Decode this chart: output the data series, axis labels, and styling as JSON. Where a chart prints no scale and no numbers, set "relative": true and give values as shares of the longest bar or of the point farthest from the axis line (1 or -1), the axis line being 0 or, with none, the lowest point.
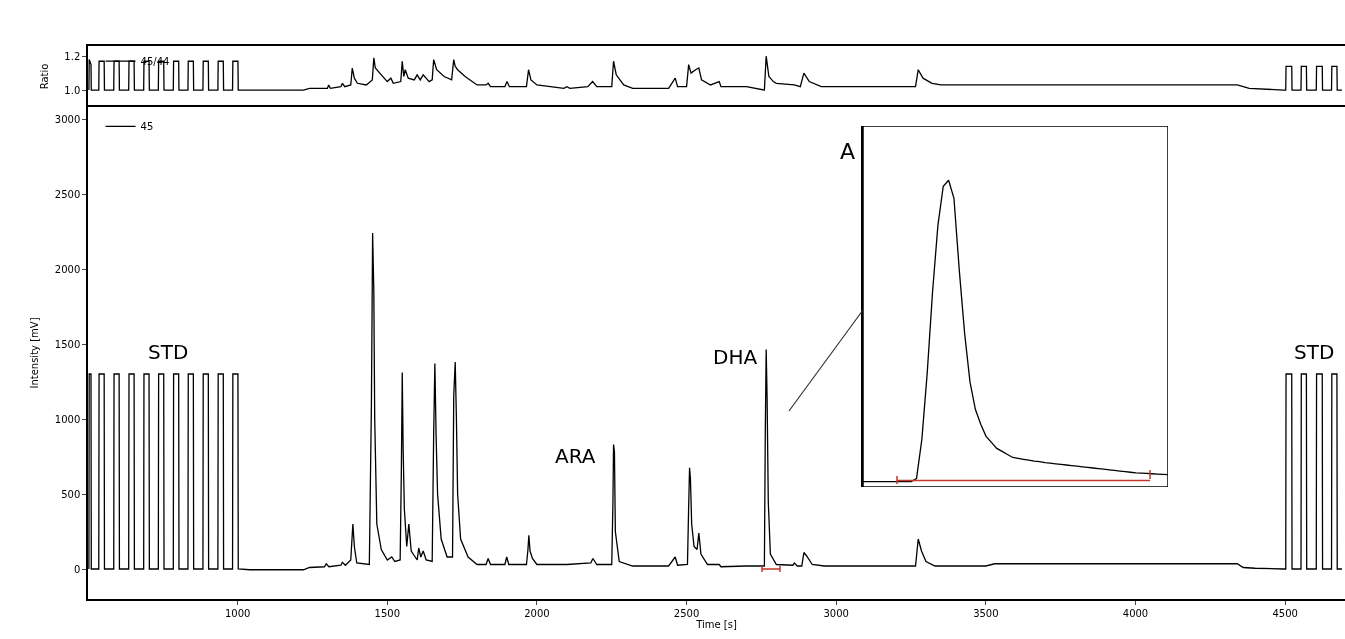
{
  "chart_data": [
    {
      "type": "line",
      "ylabel": "Ratio",
      "xlim": [
        500,
        4700
      ],
      "ylim": [
        0.9,
        1.26
      ],
      "yticks": [
        {
          "value": 1.0,
          "label": "1.0"
        },
        {
          "value": 1.2,
          "label": "1.2"
        }
      ],
      "tick_labels": "y",
      "legend": "top left",
      "series": [
        {
          "name": "45/44",
          "color": "#000000",
          "x": [
            503,
            504,
            510,
            511,
            536,
            537,
            554,
            555,
            586,
            587,
            604,
            605,
            636,
            637,
            654,
            655,
            686,
            687,
            704,
            705,
            735,
            736,
            753,
            754,
            785,
            786,
            803,
            804,
            834,
            835,
            852,
            853,
            884,
            885,
            902,
            903,
            934,
            935,
            952,
            953,
            983,
            984,
            1001,
            1002,
            1220,
            1240,
            1300,
            1304,
            1310,
            1345,
            1350,
            1358,
            1378,
            1383,
            1390,
            1400,
            1430,
            1450,
            1455,
            1460,
            1480,
            1500,
            1512,
            1520,
            1545,
            1550,
            1555,
            1560,
            1570,
            1590,
            1600,
            1610,
            1620,
            1640,
            1650,
            1655,
            1665,
            1690,
            1715,
            1722,
            1727,
            1735,
            1760,
            1800,
            1830,
            1837,
            1845,
            1893,
            1900,
            1908,
            1965,
            1972,
            1980,
            2000,
            2090,
            2100,
            2110,
            2170,
            2186,
            2200,
            2250,
            2256,
            2265,
            2290,
            2320,
            2440,
            2462,
            2470,
            2500,
            2507,
            2515,
            2530,
            2541,
            2550,
            2580,
            2609,
            2615,
            2700,
            2760,
            2766,
            2775,
            2790,
            2800,
            2860,
            2880,
            2892,
            2910,
            2950,
            3265,
            3274,
            3290,
            3320,
            3350,
            4340,
            4380,
            4495,
            4502,
            4503,
            4522,
            4523,
            4553,
            4554,
            4571,
            4572,
            4604,
            4605,
            4624,
            4625,
            4655,
            4656,
            4673,
            4674,
            4690
          ],
          "values": [
            1.0,
            1.18,
            1.15,
            1.0,
            1.0,
            1.17,
            1.17,
            1.0,
            1.0,
            1.17,
            1.17,
            1.0,
            1.0,
            1.17,
            1.17,
            1.0,
            1.0,
            1.17,
            1.17,
            1.0,
            1.0,
            1.17,
            1.17,
            1.0,
            1.0,
            1.17,
            1.17,
            1.0,
            1.0,
            1.17,
            1.17,
            1.0,
            1.0,
            1.17,
            1.17,
            1.0,
            1.0,
            1.17,
            1.17,
            1.0,
            1.0,
            1.17,
            1.17,
            1.0,
            1.0,
            1.01,
            1.01,
            1.03,
            1.01,
            1.02,
            1.04,
            1.02,
            1.03,
            1.13,
            1.07,
            1.04,
            1.03,
            1.06,
            1.19,
            1.13,
            1.09,
            1.05,
            1.07,
            1.04,
            1.05,
            1.17,
            1.08,
            1.12,
            1.07,
            1.06,
            1.09,
            1.06,
            1.09,
            1.05,
            1.06,
            1.18,
            1.12,
            1.08,
            1.06,
            1.18,
            1.14,
            1.12,
            1.08,
            1.03,
            1.03,
            1.04,
            1.02,
            1.02,
            1.05,
            1.02,
            1.02,
            1.12,
            1.06,
            1.03,
            1.01,
            1.02,
            1.01,
            1.02,
            1.05,
            1.02,
            1.02,
            1.17,
            1.09,
            1.03,
            1.01,
            1.01,
            1.07,
            1.02,
            1.02,
            1.15,
            1.1,
            1.12,
            1.13,
            1.06,
            1.03,
            1.05,
            1.02,
            1.02,
            1.0,
            1.2,
            1.08,
            1.05,
            1.04,
            1.03,
            1.02,
            1.1,
            1.05,
            1.02,
            1.02,
            1.12,
            1.07,
            1.04,
            1.03,
            1.03,
            1.01,
            1.0,
            1.0,
            1.14,
            1.14,
            1.0,
            1.0,
            1.14,
            1.14,
            1.0,
            1.0,
            1.14,
            1.14,
            1.0,
            1.0,
            1.14,
            1.14,
            1.0,
            1.0
          ]
        }
      ]
    },
    {
      "type": "line",
      "xlabel": "Time [s]",
      "ylabel": "Intensity [mV]",
      "xlim": [
        500,
        4700
      ],
      "xticks": [
        1000,
        1500,
        2000,
        2500,
        3000,
        3500,
        4000,
        4500
      ],
      "ylim": [
        -200,
        3080
      ],
      "yticks": [
        0,
        500,
        1000,
        1500,
        2000,
        2500,
        3000
      ],
      "legend": "top left",
      "annotations": [
        "STD",
        "ARA",
        "DHA",
        "STD"
      ],
      "series": [
        {
          "name": "45",
          "color": "#000000",
          "x": [
            503,
            504,
            510,
            511,
            536,
            537,
            554,
            555,
            586,
            587,
            604,
            605,
            636,
            637,
            654,
            655,
            686,
            687,
            704,
            705,
            735,
            736,
            753,
            754,
            785,
            786,
            803,
            804,
            834,
            835,
            852,
            853,
            884,
            885,
            902,
            903,
            934,
            935,
            952,
            953,
            983,
            984,
            1001,
            1002,
            1040,
            1220,
            1240,
            1290,
            1296,
            1305,
            1345,
            1350,
            1360,
            1378,
            1385,
            1390,
            1398,
            1440,
            1447,
            1451,
            1455,
            1458,
            1465,
            1480,
            1500,
            1515,
            1525,
            1543,
            1547,
            1550,
            1553,
            1557,
            1565,
            1572,
            1580,
            1600,
            1605,
            1612,
            1620,
            1630,
            1650,
            1655,
            1659,
            1663,
            1668,
            1680,
            1700,
            1718,
            1722,
            1727,
            1731,
            1735,
            1745,
            1770,
            1800,
            1830,
            1837,
            1845,
            1893,
            1899,
            1906,
            1965,
            1970,
            1973,
            1977,
            1985,
            2000,
            2100,
            2180,
            2187,
            2200,
            2250,
            2254,
            2256,
            2259,
            2262,
            2275,
            2320,
            2440,
            2462,
            2470,
            2503,
            2507,
            2510,
            2513,
            2517,
            2525,
            2535,
            2541,
            2548,
            2570,
            2609,
            2615,
            2700,
            2760,
            2763,
            2766,
            2769,
            2773,
            2780,
            2800,
            2855,
            2860,
            2870,
            2885,
            2892,
            2900,
            2920,
            2960,
            3265,
            3274,
            3285,
            3300,
            3330,
            3500,
            3530,
            4340,
            4360,
            4400,
            4495,
            4502,
            4503,
            4522,
            4523,
            4553,
            4554,
            4571,
            4572,
            4604,
            4605,
            4624,
            4625,
            4655,
            4656,
            4673,
            4674,
            4690
          ],
          "values": [
            0,
            1300,
            1300,
            0,
            0,
            1300,
            1300,
            0,
            0,
            1300,
            1300,
            0,
            0,
            1300,
            1300,
            0,
            0,
            1300,
            1300,
            0,
            0,
            1300,
            1300,
            0,
            0,
            1300,
            1300,
            0,
            0,
            1300,
            1300,
            0,
            0,
            1300,
            1300,
            0,
            0,
            1300,
            1300,
            0,
            0,
            1300,
            1300,
            0,
            -5,
            -5,
            10,
            15,
            35,
            15,
            25,
            45,
            25,
            60,
            300,
            150,
            40,
            30,
            1100,
            2240,
            1850,
            1000,
            300,
            130,
            60,
            80,
            50,
            60,
            650,
            1310,
            800,
            400,
            150,
            300,
            120,
            60,
            140,
            80,
            120,
            60,
            50,
            900,
            1370,
            900,
            500,
            200,
            80,
            80,
            1150,
            1380,
            1000,
            500,
            200,
            80,
            30,
            30,
            70,
            30,
            30,
            80,
            30,
            30,
            130,
            225,
            120,
            70,
            30,
            30,
            40,
            70,
            30,
            30,
            450,
            830,
            780,
            250,
            50,
            20,
            20,
            80,
            25,
            30,
            420,
            675,
            600,
            300,
            150,
            130,
            240,
            100,
            30,
            30,
            15,
            20,
            20,
            900,
            1464,
            1150,
            450,
            100,
            30,
            25,
            40,
            20,
            20,
            110,
            90,
            30,
            20,
            20,
            200,
            120,
            50,
            20,
            20,
            35,
            35,
            10,
            5,
            0,
            0,
            1300,
            1300,
            0,
            0,
            1300,
            1300,
            0,
            0,
            1300,
            1300,
            0,
            0,
            1300,
            1300,
            0,
            0
          ]
        }
      ]
    },
    {
      "type": "line",
      "relative": true,
      "tick_labels": false,
      "annotations": [
        "A"
      ],
      "categories": [
        null,
        null,
        null,
        null,
        null,
        null,
        null,
        null,
        null,
        null,
        null,
        null,
        null,
        null,
        null,
        null,
        null,
        null,
        null,
        null,
        null,
        null,
        null,
        null,
        null,
        null,
        null,
        null,
        null,
        null,
        null,
        null,
        null,
        null,
        null,
        null,
        null,
        null,
        null,
        null,
        null,
        null,
        null,
        null,
        null,
        null,
        null,
        null,
        null,
        null,
        null,
        null,
        null,
        null,
        null,
        null,
        null,
        null
      ],
      "series": [
        {
          "color": "#000000",
          "values": [
            0,
            0,
            0,
            0,
            0,
            0,
            0,
            0,
            0,
            0,
            0.01,
            0.14,
            0.36,
            0.63,
            0.85,
            0.98,
            1,
            0.94,
            0.7,
            0.49,
            0.33,
            0.24,
            0.19,
            0.15,
            0.13,
            0.11,
            0.1,
            0.09,
            0.08,
            0.077,
            0.074,
            0.071,
            0.068,
            0.066,
            0.063,
            0.061,
            0.059,
            0.057,
            0.055,
            0.053,
            0.051,
            0.049,
            0.047,
            0.045,
            0.043,
            0.041,
            0.039,
            0.037,
            0.035,
            0.033,
            0.031,
            0.029,
            0.028,
            0.027,
            0.026,
            0.025,
            0.024,
            0.023
          ]
        }
      ]
    }
  ]
}
